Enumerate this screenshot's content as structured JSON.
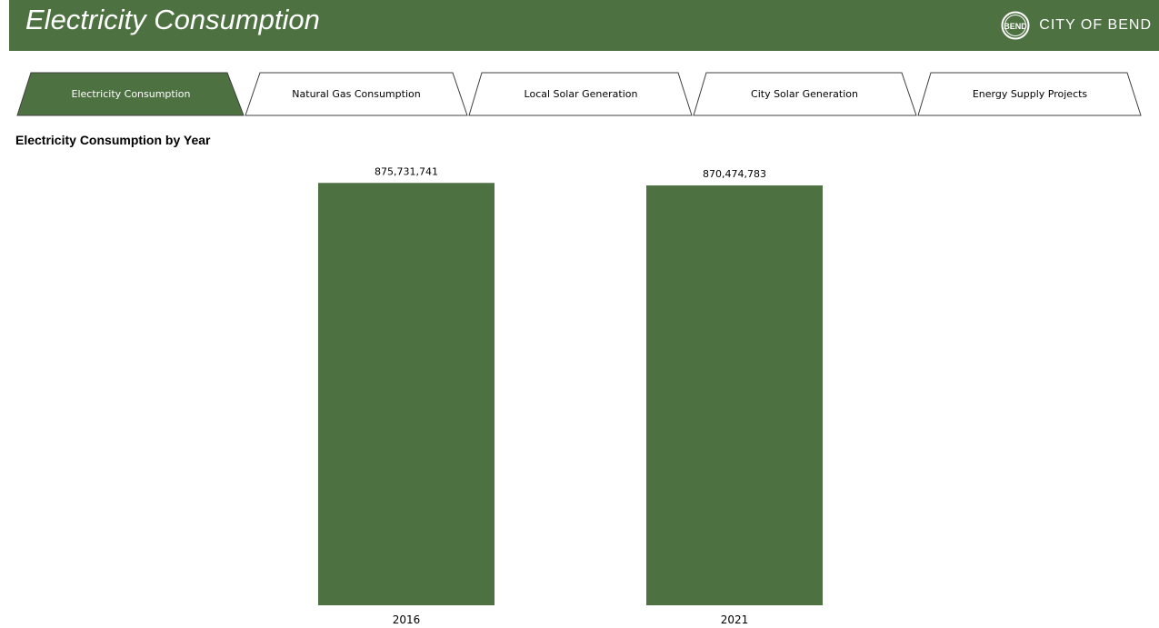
{
  "header": {
    "title": "Electricity Consumption",
    "logo_text": "CITY OF BEND",
    "logo_seal_text": "BEND",
    "colors": {
      "bar": "#4e7142",
      "text": "#ffffff"
    }
  },
  "tabs": [
    {
      "label": "Electricity Consumption",
      "active": true
    },
    {
      "label": "Natural Gas Consumption",
      "active": false
    },
    {
      "label": "Local Solar Generation",
      "active": false
    },
    {
      "label": "City Solar Generation",
      "active": false
    },
    {
      "label": "Energy Supply Projects",
      "active": false
    }
  ],
  "chart_data": {
    "type": "bar",
    "title": "Electricity Consumption by Year",
    "categories": [
      "2016",
      "2021"
    ],
    "values": [
      875731741,
      870474783
    ],
    "data_labels": [
      "875,731,741",
      "870,474,783"
    ],
    "ylim": [
      0,
      880000000
    ],
    "bar_color": "#4e7142",
    "grid": false,
    "legend": "none"
  }
}
